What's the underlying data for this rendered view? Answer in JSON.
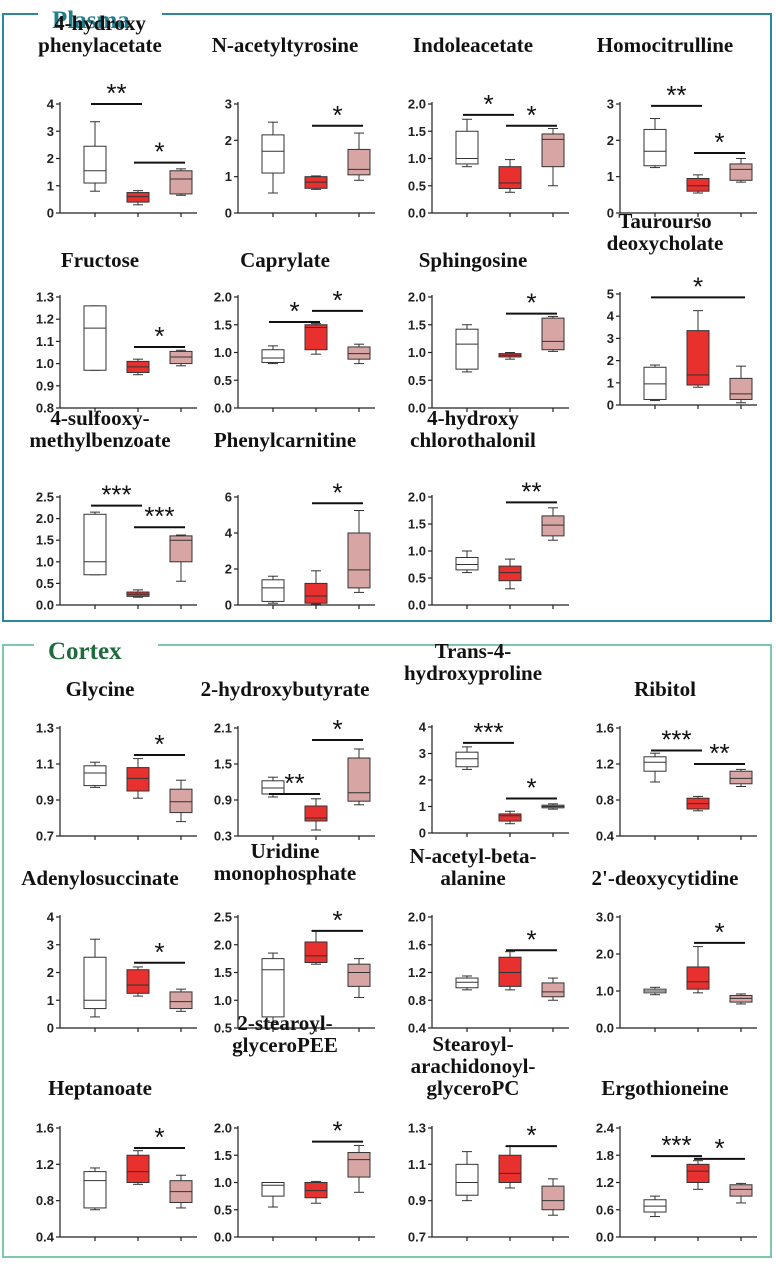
{
  "sections": [
    {
      "title": "Plasma",
      "color": "#2a8a9c",
      "title_color": "#1f7f8f"
    },
    {
      "title": "Cortex",
      "color": "#7cc8a8",
      "title_color": "#1e6b3c"
    }
  ],
  "colors": {
    "group1": "#ffffff",
    "group2": "#e8302e",
    "group3": "#d7a5a3",
    "stroke": "#333333"
  },
  "chart_data": [
    {
      "type": "boxplot",
      "section": "Plasma",
      "title": [
        "4-hydroxy",
        "phenylacetate"
      ],
      "yticks": [
        "0",
        "1",
        "2",
        "3",
        "4"
      ],
      "ylim": [
        0,
        4
      ],
      "boxes": [
        [
          0.8,
          1.1,
          1.55,
          2.45,
          3.35
        ],
        [
          0.3,
          0.4,
          0.6,
          0.75,
          0.82
        ],
        [
          0.65,
          0.7,
          1.25,
          1.55,
          1.62
        ]
      ],
      "sig": [
        {
          "from": 0,
          "to": 1,
          "y": 4.0,
          "label": "**"
        },
        {
          "from": 1,
          "to": 2,
          "y": 1.85,
          "label": "*"
        }
      ]
    },
    {
      "type": "boxplot",
      "section": "Plasma",
      "title": [
        "N-acetyltyrosine"
      ],
      "yticks": [
        "0",
        "1",
        "2",
        "3"
      ],
      "ylim": [
        0,
        3
      ],
      "boxes": [
        [
          0.55,
          1.1,
          1.7,
          2.15,
          2.5
        ],
        [
          0.65,
          0.68,
          0.85,
          1.0,
          1.02
        ],
        [
          0.9,
          1.05,
          1.2,
          1.75,
          2.2
        ]
      ],
      "sig": [
        {
          "from": 1,
          "to": 2,
          "y": 2.4,
          "label": "*"
        }
      ]
    },
    {
      "type": "boxplot",
      "section": "Plasma",
      "title": [
        "Indoleacetate"
      ],
      "yticks": [
        "0.0",
        "0.5",
        "1.0",
        "1.5",
        "2.0"
      ],
      "ylim": [
        0,
        2
      ],
      "boxes": [
        [
          0.85,
          0.9,
          1.0,
          1.5,
          1.72
        ],
        [
          0.38,
          0.45,
          0.55,
          0.85,
          0.98
        ],
        [
          0.5,
          0.85,
          1.35,
          1.45,
          1.55
        ]
      ],
      "sig": [
        {
          "from": 0,
          "to": 1,
          "y": 1.8,
          "label": "*"
        },
        {
          "from": 1,
          "to": 2,
          "y": 1.6,
          "label": "*"
        }
      ]
    },
    {
      "type": "boxplot",
      "section": "Plasma",
      "title": [
        "Homocitrulline"
      ],
      "yticks": [
        "0",
        "1",
        "2",
        "3"
      ],
      "ylim": [
        0,
        3
      ],
      "boxes": [
        [
          1.25,
          1.3,
          1.7,
          2.3,
          2.6
        ],
        [
          0.55,
          0.6,
          0.75,
          0.95,
          1.05
        ],
        [
          0.85,
          0.9,
          1.2,
          1.35,
          1.5
        ]
      ],
      "sig": [
        {
          "from": 0,
          "to": 1,
          "y": 2.95,
          "label": "**"
        },
        {
          "from": 1,
          "to": 2,
          "y": 1.65,
          "label": "*"
        }
      ]
    },
    {
      "type": "boxplot",
      "section": "Plasma",
      "title": [
        "Fructose"
      ],
      "yticks": [
        "0.8",
        "0.9",
        "1.0",
        "1.1",
        "1.2",
        "1.3"
      ],
      "ylim": [
        0.8,
        1.3
      ],
      "boxes": [
        [
          0.97,
          0.97,
          1.16,
          1.26,
          1.26
        ],
        [
          0.95,
          0.96,
          0.985,
          1.01,
          1.02
        ],
        [
          0.99,
          1.0,
          1.03,
          1.055,
          1.06
        ]
      ],
      "sig": [
        {
          "from": 1,
          "to": 2,
          "y": 1.075,
          "label": "*"
        }
      ]
    },
    {
      "type": "boxplot",
      "section": "Plasma",
      "title": [
        "Caprylate"
      ],
      "yticks": [
        "0.0",
        "0.5",
        "1.0",
        "1.5",
        "2.0"
      ],
      "ylim": [
        0,
        2
      ],
      "boxes": [
        [
          0.8,
          0.82,
          0.9,
          1.05,
          1.12
        ],
        [
          0.97,
          1.05,
          1.45,
          1.5,
          1.52
        ],
        [
          0.8,
          0.88,
          0.98,
          1.1,
          1.15
        ]
      ],
      "sig": [
        {
          "from": 0,
          "to": 1,
          "y": 1.55,
          "label": "*"
        },
        {
          "from": 1,
          "to": 2,
          "y": 1.75,
          "label": "*"
        }
      ]
    },
    {
      "type": "boxplot",
      "section": "Plasma",
      "title": [
        "Sphingosine"
      ],
      "yticks": [
        "0.0",
        "0.5",
        "1.0",
        "1.5",
        "2.0"
      ],
      "ylim": [
        0,
        2
      ],
      "boxes": [
        [
          0.65,
          0.7,
          1.15,
          1.42,
          1.5
        ],
        [
          0.88,
          0.92,
          0.95,
          0.98,
          1.0
        ],
        [
          1.02,
          1.05,
          1.2,
          1.62,
          1.65
        ]
      ],
      "sig": [
        {
          "from": 1,
          "to": 2,
          "y": 1.7,
          "label": "*"
        }
      ]
    },
    {
      "type": "boxplot",
      "section": "Plasma",
      "title": [
        "Taurourso",
        "deoxycholate"
      ],
      "yticks": [
        "0",
        "1",
        "2",
        "3",
        "4",
        "5"
      ],
      "ylim": [
        0,
        5
      ],
      "boxes": [
        [
          0.2,
          0.25,
          0.95,
          1.7,
          1.8
        ],
        [
          0.8,
          0.9,
          1.35,
          3.35,
          4.25
        ],
        [
          0.1,
          0.25,
          0.5,
          1.2,
          1.75
        ]
      ],
      "sig": [
        {
          "from": 0,
          "to": 2,
          "y": 4.85,
          "label": "*"
        }
      ]
    },
    {
      "type": "boxplot",
      "section": "Plasma",
      "title": [
        "4-sulfooxy-",
        "methylbenzoate"
      ],
      "yticks": [
        "0.0",
        "0.5",
        "1.0",
        "1.5",
        "2.0",
        "2.5"
      ],
      "ylim": [
        0,
        2.5
      ],
      "boxes": [
        [
          0.7,
          0.7,
          1.0,
          2.1,
          2.15
        ],
        [
          0.18,
          0.2,
          0.25,
          0.3,
          0.35
        ],
        [
          0.55,
          1.0,
          1.5,
          1.6,
          1.62
        ]
      ],
      "sig": [
        {
          "from": 0,
          "to": 1,
          "y": 2.3,
          "label": "***"
        },
        {
          "from": 1,
          "to": 2,
          "y": 1.8,
          "label": "***"
        }
      ]
    },
    {
      "type": "boxplot",
      "section": "Plasma",
      "title": [
        "Phenylcarnitine"
      ],
      "yticks": [
        "0",
        "2",
        "4",
        "6"
      ],
      "ylim": [
        0,
        6
      ],
      "boxes": [
        [
          0.1,
          0.2,
          0.95,
          1.4,
          1.6
        ],
        [
          0.05,
          0.1,
          0.5,
          1.2,
          1.9
        ],
        [
          0.7,
          0.95,
          1.95,
          4.0,
          5.25
        ]
      ],
      "sig": [
        {
          "from": 1,
          "to": 2,
          "y": 5.65,
          "label": "*"
        }
      ]
    },
    {
      "type": "boxplot",
      "section": "Plasma",
      "title": [
        "4-hydroxy",
        "chlorothalonil"
      ],
      "yticks": [
        "0.0",
        "0.5",
        "1.0",
        "1.5",
        "2.0"
      ],
      "ylim": [
        0,
        2
      ],
      "boxes": [
        [
          0.6,
          0.65,
          0.75,
          0.88,
          1.0
        ],
        [
          0.3,
          0.45,
          0.6,
          0.72,
          0.85
        ],
        [
          1.2,
          1.28,
          1.48,
          1.65,
          1.8
        ]
      ],
      "sig": [
        {
          "from": 1,
          "to": 2,
          "y": 1.9,
          "label": "**"
        }
      ]
    },
    {
      "type": "boxplot",
      "section": "Cortex",
      "title": [
        "Glycine"
      ],
      "yticks": [
        "0.7",
        "0.9",
        "1.1",
        "1.3"
      ],
      "ylim": [
        0.7,
        1.3
      ],
      "boxes": [
        [
          0.97,
          0.98,
          1.05,
          1.09,
          1.11
        ],
        [
          0.91,
          0.95,
          1.02,
          1.08,
          1.13
        ],
        [
          0.78,
          0.83,
          0.89,
          0.96,
          1.01
        ]
      ],
      "sig": [
        {
          "from": 1,
          "to": 2,
          "y": 1.15,
          "label": "*"
        }
      ]
    },
    {
      "type": "boxplot",
      "section": "Cortex",
      "title": [
        "2-hydroxybutyrate"
      ],
      "yticks": [
        "0.3",
        "0.9",
        "1.5",
        "2.1"
      ],
      "ylim": [
        0.3,
        2.1
      ],
      "boxes": [
        [
          0.95,
          1.0,
          1.1,
          1.22,
          1.28
        ],
        [
          0.4,
          0.55,
          0.6,
          0.8,
          0.92
        ],
        [
          0.82,
          0.88,
          1.02,
          1.6,
          1.75
        ]
      ],
      "sig": [
        {
          "from": 0,
          "to": 1,
          "y": 1.0,
          "label": "**"
        },
        {
          "from": 1,
          "to": 2,
          "y": 1.9,
          "label": "*"
        }
      ]
    },
    {
      "type": "boxplot",
      "section": "Cortex",
      "title": [
        "Trans-4-",
        "hydroxyproline"
      ],
      "yticks": [
        "0",
        "1",
        "2",
        "3",
        "4"
      ],
      "ylim": [
        0,
        4
      ],
      "boxes": [
        [
          2.4,
          2.5,
          2.8,
          3.05,
          3.25
        ],
        [
          0.35,
          0.45,
          0.65,
          0.72,
          0.82
        ],
        [
          0.9,
          0.95,
          1.0,
          1.05,
          1.1
        ]
      ],
      "sig": [
        {
          "from": 0,
          "to": 1,
          "y": 3.4,
          "label": "***"
        },
        {
          "from": 1,
          "to": 2,
          "y": 1.3,
          "label": "*"
        }
      ]
    },
    {
      "type": "boxplot",
      "section": "Cortex",
      "title": [
        "Ribitol"
      ],
      "yticks": [
        "0.4",
        "0.8",
        "1.2",
        "1.6"
      ],
      "ylim": [
        0.4,
        1.6
      ],
      "boxes": [
        [
          1.0,
          1.12,
          1.22,
          1.28,
          1.32
        ],
        [
          0.68,
          0.7,
          0.76,
          0.82,
          0.84
        ],
        [
          0.95,
          0.98,
          1.04,
          1.12,
          1.14
        ]
      ],
      "sig": [
        {
          "from": 0,
          "to": 1,
          "y": 1.35,
          "label": "***"
        },
        {
          "from": 1,
          "to": 2,
          "y": 1.2,
          "label": "**"
        }
      ]
    },
    {
      "type": "boxplot",
      "section": "Cortex",
      "title": [
        "Adenylosuccinate"
      ],
      "yticks": [
        "0",
        "1",
        "2",
        "3",
        "4"
      ],
      "ylim": [
        0,
        4
      ],
      "boxes": [
        [
          0.4,
          0.7,
          1.0,
          2.55,
          3.2
        ],
        [
          1.15,
          1.25,
          1.55,
          2.1,
          2.2
        ],
        [
          0.6,
          0.7,
          0.95,
          1.3,
          1.4
        ]
      ],
      "sig": [
        {
          "from": 1,
          "to": 2,
          "y": 2.35,
          "label": "*"
        }
      ]
    },
    {
      "type": "boxplot",
      "section": "Cortex",
      "title": [
        "Uridine",
        "monophosphate"
      ],
      "yticks": [
        "0.5",
        "1.0",
        "1.5",
        "2.0",
        "2.5"
      ],
      "ylim": [
        0.5,
        2.5
      ],
      "boxes": [
        [
          0.6,
          0.7,
          1.55,
          1.75,
          1.85
        ],
        [
          1.65,
          1.68,
          1.8,
          2.05,
          2.25
        ],
        [
          1.05,
          1.25,
          1.5,
          1.65,
          1.75
        ]
      ],
      "sig": [
        {
          "from": 1,
          "to": 2,
          "y": 2.25,
          "label": "*"
        }
      ]
    },
    {
      "type": "boxplot",
      "section": "Cortex",
      "title": [
        "N-acetyl-beta-",
        "alanine"
      ],
      "yticks": [
        "0.4",
        "0.8",
        "1.2",
        "1.6",
        "2.0"
      ],
      "ylim": [
        0.4,
        2.0
      ],
      "boxes": [
        [
          0.95,
          0.98,
          1.06,
          1.12,
          1.15
        ],
        [
          0.95,
          1.0,
          1.2,
          1.42,
          1.5
        ],
        [
          0.8,
          0.85,
          0.92,
          1.05,
          1.12
        ]
      ],
      "sig": [
        {
          "from": 1,
          "to": 2,
          "y": 1.52,
          "label": "*"
        }
      ]
    },
    {
      "type": "boxplot",
      "section": "Cortex",
      "title": [
        "2'-deoxycytidine"
      ],
      "yticks": [
        "0.0",
        "1.0",
        "2.0",
        "3.0"
      ],
      "ylim": [
        0,
        3
      ],
      "boxes": [
        [
          0.9,
          0.95,
          1.0,
          1.05,
          1.1
        ],
        [
          0.95,
          1.05,
          1.25,
          1.65,
          2.2
        ],
        [
          0.65,
          0.7,
          0.8,
          0.88,
          0.92
        ]
      ],
      "sig": [
        {
          "from": 1,
          "to": 2,
          "y": 2.3,
          "label": "*"
        }
      ]
    },
    {
      "type": "boxplot",
      "section": "Cortex",
      "title": [
        "Heptanoate"
      ],
      "yticks": [
        "0.4",
        "0.8",
        "1.2",
        "1.6"
      ],
      "ylim": [
        0.4,
        1.6
      ],
      "boxes": [
        [
          0.7,
          0.72,
          1.02,
          1.12,
          1.16
        ],
        [
          0.98,
          1.0,
          1.12,
          1.3,
          1.35
        ],
        [
          0.72,
          0.78,
          0.9,
          1.02,
          1.08
        ]
      ],
      "sig": [
        {
          "from": 1,
          "to": 2,
          "y": 1.38,
          "label": "*"
        }
      ]
    },
    {
      "type": "boxplot",
      "section": "Cortex",
      "title": [
        "2-stearoyl-",
        "glyceroPEE"
      ],
      "yticks": [
        "0.0",
        "0.5",
        "1.0",
        "1.5",
        "2.0"
      ],
      "ylim": [
        0,
        2
      ],
      "boxes": [
        [
          0.55,
          0.75,
          0.95,
          1.0,
          1.0
        ],
        [
          0.62,
          0.72,
          0.85,
          1.0,
          1.02
        ],
        [
          0.82,
          1.1,
          1.42,
          1.55,
          1.68
        ]
      ],
      "sig": [
        {
          "from": 1,
          "to": 2,
          "y": 1.75,
          "label": "*"
        }
      ]
    },
    {
      "type": "boxplot",
      "section": "Cortex",
      "title": [
        "Stearoyl-",
        "arachidonoyl-",
        "glyceroPC"
      ],
      "yticks": [
        "0.7",
        "0.9",
        "1.1",
        "1.3"
      ],
      "ylim": [
        0.7,
        1.3
      ],
      "boxes": [
        [
          0.9,
          0.93,
          1.0,
          1.1,
          1.17
        ],
        [
          0.97,
          1.0,
          1.05,
          1.15,
          1.2
        ],
        [
          0.82,
          0.85,
          0.9,
          0.98,
          1.02
        ]
      ],
      "sig": [
        {
          "from": 1,
          "to": 2,
          "y": 1.2,
          "label": "*"
        }
      ]
    },
    {
      "type": "boxplot",
      "section": "Cortex",
      "title": [
        "Ergothioneine"
      ],
      "yticks": [
        "0.0",
        "0.6",
        "1.2",
        "1.8",
        "2.4"
      ],
      "ylim": [
        0,
        2.4
      ],
      "boxes": [
        [
          0.45,
          0.55,
          0.68,
          0.82,
          0.9
        ],
        [
          1.05,
          1.2,
          1.45,
          1.6,
          1.68
        ],
        [
          0.75,
          0.9,
          1.05,
          1.15,
          1.18
        ]
      ],
      "sig": [
        {
          "from": 0,
          "to": 1,
          "y": 1.78,
          "label": "***"
        },
        {
          "from": 1,
          "to": 2,
          "y": 1.72,
          "label": "*"
        }
      ]
    }
  ]
}
